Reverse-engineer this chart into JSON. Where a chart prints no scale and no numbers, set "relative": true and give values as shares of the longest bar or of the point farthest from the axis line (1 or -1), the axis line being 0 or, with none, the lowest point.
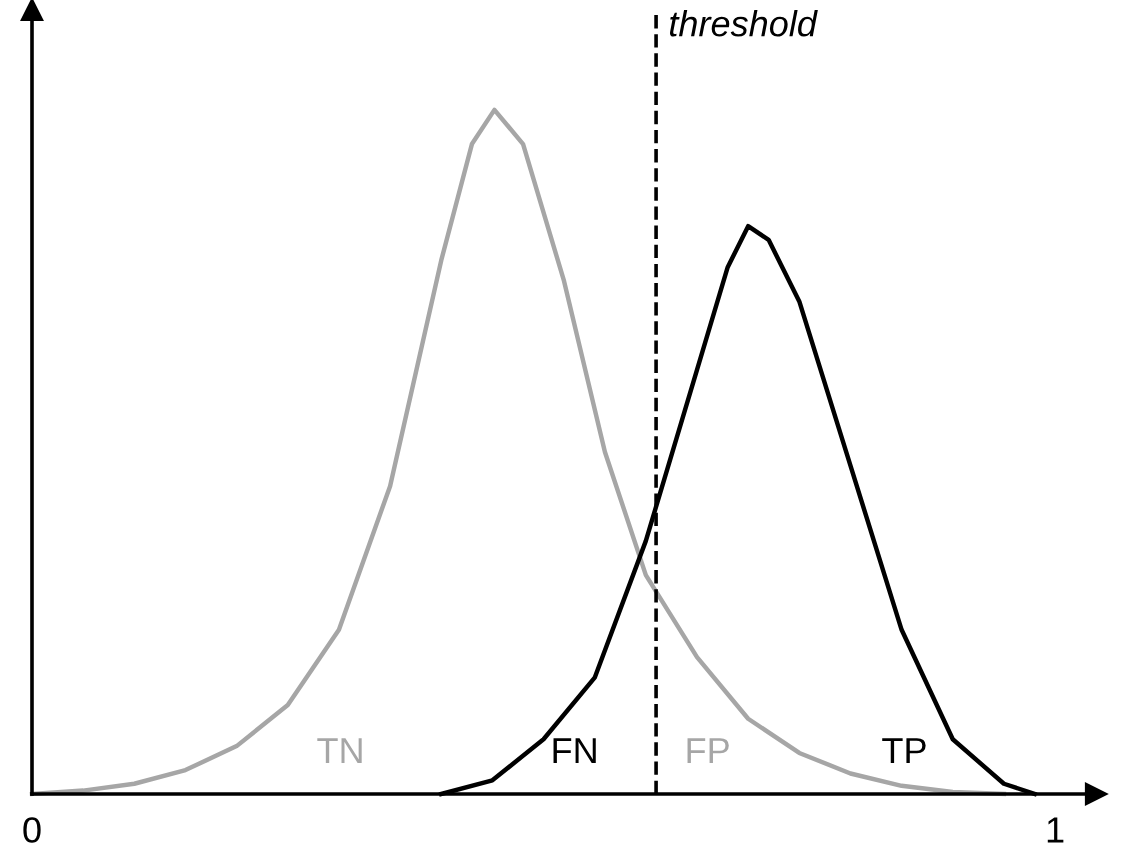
{
  "chart_data": {
    "type": "line",
    "relative": true,
    "xlim": [
      0,
      1.04
    ],
    "xticks": [
      0,
      1
    ],
    "series": [
      {
        "color": "#a6a6a6",
        "x": [
          0,
          0.05,
          0.1,
          0.15,
          0.2,
          0.25,
          0.3,
          0.35,
          0.4,
          0.43,
          0.452,
          0.48,
          0.52,
          0.56,
          0.6,
          0.65,
          0.7,
          0.75,
          0.8,
          0.85,
          0.9,
          0.95
        ],
        "values": [
          0,
          0.005,
          0.015,
          0.035,
          0.07,
          0.13,
          0.24,
          0.45,
          0.78,
          0.95,
          1.0,
          0.95,
          0.75,
          0.5,
          0.32,
          0.2,
          0.11,
          0.06,
          0.03,
          0.012,
          0.003,
          0
        ]
      },
      {
        "color": "#000000",
        "x": [
          0.4,
          0.45,
          0.5,
          0.55,
          0.6,
          0.65,
          0.68,
          0.7,
          0.72,
          0.75,
          0.8,
          0.85,
          0.9,
          0.95,
          0.98
        ],
        "values": [
          0,
          0.02,
          0.08,
          0.17,
          0.37,
          0.62,
          0.77,
          0.83,
          0.81,
          0.72,
          0.48,
          0.24,
          0.08,
          0.015,
          0
        ]
      }
    ],
    "ref_lines": [
      {
        "axis": "x",
        "value": 0.61,
        "label": "threshold",
        "color": "#000000",
        "line_style": "dashed"
      }
    ],
    "annotations": [
      "TN",
      "FN",
      "FP",
      "TP"
    ],
    "grid": false,
    "legend": false,
    "marker": "none",
    "line_style": "solid"
  }
}
